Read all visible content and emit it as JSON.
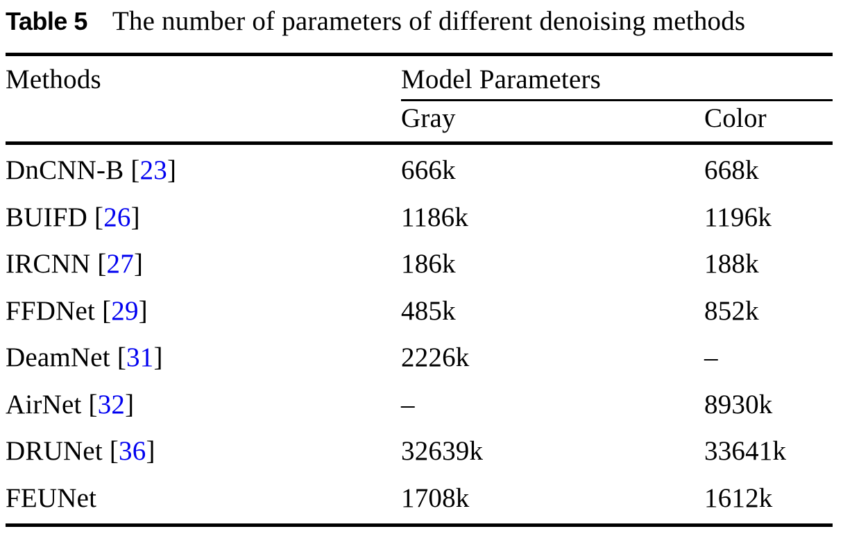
{
  "caption": {
    "label": "Table 5",
    "text": "The number of parameters of different denoising methods"
  },
  "table": {
    "col_methods": "Methods",
    "col_group": "Model Parameters",
    "col_gray": "Gray",
    "col_color": "Color",
    "cite_open": "[",
    "cite_close": "]",
    "rows": [
      {
        "method": "DnCNN-B",
        "cite": "23",
        "gray": "666k",
        "color": "668k"
      },
      {
        "method": "BUIFD",
        "cite": "26",
        "gray": "1186k",
        "color": "1196k"
      },
      {
        "method": "IRCNN",
        "cite": "27",
        "gray": "186k",
        "color": "188k"
      },
      {
        "method": "FFDNet",
        "cite": "29",
        "gray": "485k",
        "color": "852k"
      },
      {
        "method": "DeamNet",
        "cite": "31",
        "gray": "2226k",
        "color": "–"
      },
      {
        "method": "AirNet",
        "cite": "32",
        "gray": "–",
        "color": "8930k"
      },
      {
        "method": "DRUNet",
        "cite": "36",
        "gray": "32639k",
        "color": "33641k"
      },
      {
        "method": "FEUNet",
        "cite": "",
        "gray": "1708k",
        "color": "1612k"
      }
    ]
  },
  "colors": {
    "text": "#000000",
    "citation": "#0000f0",
    "background": "#ffffff",
    "rule": "#000000"
  }
}
